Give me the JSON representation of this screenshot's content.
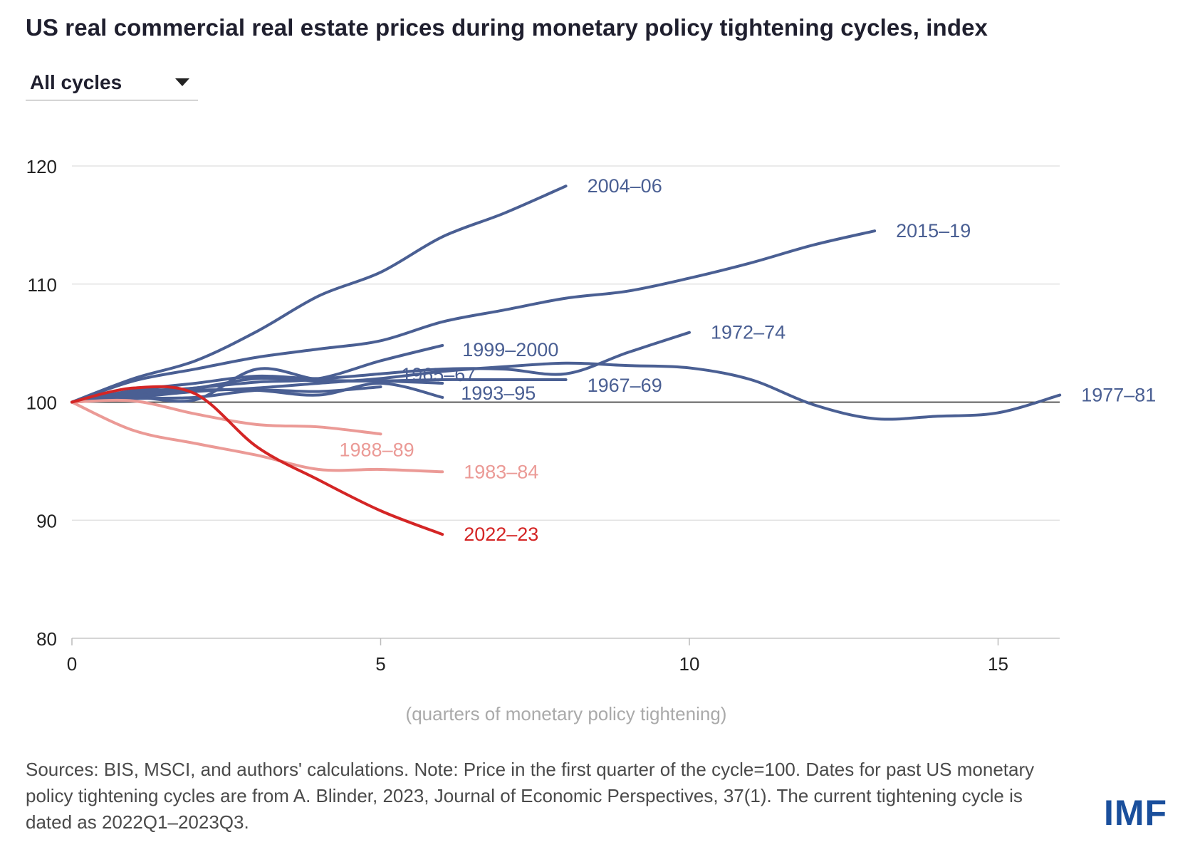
{
  "header": {
    "title": "US real commercial real estate prices during monetary policy tightening cycles, index"
  },
  "filter": {
    "selected": "All cycles",
    "icon": "chevron-down-icon"
  },
  "footer": {
    "note": "Sources: BIS, MSCI, and authors' calculations. Note: Price in the first quarter of the cycle=100. Dates for past US monetary policy tightening cycles are from A. Blinder, 2023, Journal of Economic Perspectives, 37(1). The current tightening cycle is dated as 2022Q1–2023Q3.",
    "logo": "IMF"
  },
  "colors": {
    "past_cycle": "#4a5f93",
    "below_baseline": "#eb9a96",
    "current": "#d42525",
    "grid": "#e3e3e3",
    "baseline": "#444444"
  },
  "chart_data": {
    "type": "line",
    "title": "US real commercial real estate prices during monetary policy tightening cycles, index",
    "xlabel": "(quarters of monetary policy tightening)",
    "ylabel": "",
    "xlim": [
      0,
      16
    ],
    "ylim": [
      80,
      120
    ],
    "xticks": [
      0,
      5,
      10,
      15
    ],
    "yticks": [
      80,
      90,
      100,
      110,
      120
    ],
    "baseline": 100,
    "grid": true,
    "series": [
      {
        "name": "2004–06",
        "color": "#4a5f93",
        "x": [
          0,
          1,
          2,
          3,
          4,
          5,
          6,
          7,
          8
        ],
        "y": [
          100,
          102,
          103.5,
          106,
          109,
          111,
          114,
          116,
          118.3
        ]
      },
      {
        "name": "2015–19",
        "color": "#4a5f93",
        "x": [
          0,
          1,
          2,
          3,
          4,
          5,
          6,
          7,
          8,
          9,
          10,
          11,
          12,
          13
        ],
        "y": [
          100,
          101.8,
          102.8,
          103.8,
          104.5,
          105.2,
          106.8,
          107.8,
          108.8,
          109.4,
          110.5,
          111.8,
          113.3,
          114.5
        ]
      },
      {
        "name": "1972–74",
        "color": "#4a5f93",
        "x": [
          0,
          1,
          2,
          3,
          4,
          5,
          6,
          7,
          8,
          9,
          10
        ],
        "y": [
          100,
          101,
          101.6,
          102.2,
          102,
          102.4,
          102.8,
          102.8,
          102.4,
          104.2,
          105.9
        ]
      },
      {
        "name": "1999–2000",
        "color": "#4a5f93",
        "x": [
          0,
          1,
          2,
          3,
          4,
          5,
          6
        ],
        "y": [
          100,
          100.7,
          101.2,
          101.7,
          102,
          103.5,
          104.8
        ]
      },
      {
        "name": "1967–69",
        "color": "#4a5f93",
        "x": [
          0,
          1,
          2,
          3,
          4,
          5,
          6,
          7,
          8
        ],
        "y": [
          100,
          100.9,
          101.2,
          102,
          101.8,
          101.8,
          101.9,
          101.9,
          101.9
        ]
      },
      {
        "name": "1977–81",
        "color": "#4a5f93",
        "x": [
          0,
          1,
          2,
          3,
          4,
          5,
          6,
          7,
          8,
          9,
          10,
          11,
          12,
          13,
          14,
          15,
          16
        ],
        "y": [
          100,
          100.4,
          100.9,
          101.2,
          101.6,
          102,
          102.6,
          103,
          103.3,
          103.1,
          102.9,
          101.9,
          99.8,
          98.6,
          98.8,
          99.1,
          100.6
        ]
      },
      {
        "name": "1965–67",
        "color": "#4a5f93",
        "x": [
          0,
          1,
          2,
          3,
          4,
          5,
          6
        ],
        "y": [
          100,
          100.4,
          100.2,
          102.8,
          101.9,
          101.8,
          101.6
        ]
      },
      {
        "name": "1993–95",
        "color": "#4a5f93",
        "x": [
          0,
          1,
          2,
          3,
          4,
          5,
          6
        ],
        "y": [
          100,
          100.5,
          101,
          101,
          100.6,
          101.6,
          100.4
        ]
      },
      {
        "name": "",
        "color": "#4a5f93",
        "x": [
          0,
          1,
          2,
          3,
          4,
          5
        ],
        "y": [
          100,
          100.3,
          100.4,
          101,
          100.9,
          101.3
        ]
      },
      {
        "name": "1988–89",
        "color": "#eb9a96",
        "x": [
          0,
          1,
          2,
          3,
          4,
          5
        ],
        "y": [
          100,
          100.1,
          99,
          98.1,
          97.9,
          97.3
        ]
      },
      {
        "name": "1983–84",
        "color": "#eb9a96",
        "x": [
          0,
          1,
          2,
          3,
          4,
          5,
          6
        ],
        "y": [
          100,
          97.6,
          96.5,
          95.5,
          94.3,
          94.3,
          94.1
        ]
      },
      {
        "name": "2022–23",
        "color": "#d42525",
        "x": [
          0,
          1,
          2,
          3,
          4,
          5,
          6
        ],
        "y": [
          100,
          101.2,
          100.7,
          96.2,
          93.4,
          90.8,
          88.8
        ]
      }
    ]
  }
}
